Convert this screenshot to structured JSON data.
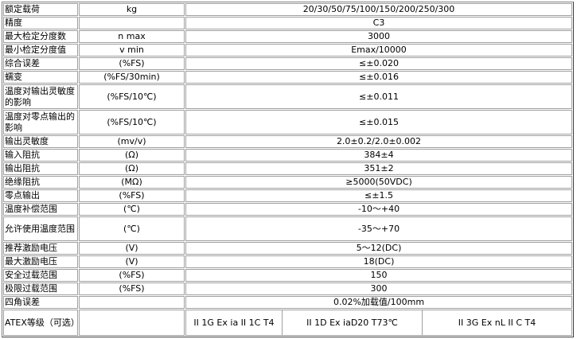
{
  "rows": [
    {
      "name": "额定载荷",
      "unit": "kg",
      "value": "20/30/50/75/100/150/200/250/300"
    },
    {
      "name": "精度",
      "unit": "",
      "value": "C3"
    },
    {
      "name": "最大检定分度数",
      "unit": "n max",
      "value": "3000"
    },
    {
      "name": "最小检定分度值",
      "unit": "v min",
      "value": "Emax/10000"
    },
    {
      "name": "综合误差",
      "unit": "(%FS)",
      "value": "≤±0.020"
    },
    {
      "name": "蠕变",
      "unit": "(%FS/30min)",
      "value": "≤±0.016"
    },
    {
      "name": "温度对输出灵敏度的影响",
      "unit": "(%FS/10℃)",
      "value": "≤±0.011"
    },
    {
      "name": "温度对零点输出的影响",
      "unit": "(%FS/10℃)",
      "value": "≤±0.015"
    },
    {
      "name": "输出灵敏度",
      "unit": "(mv/v)",
      "value": "2.0±0.2/2.0±0.002"
    },
    {
      "name": "输入阻抗",
      "unit": "(Ω)",
      "value": "384±4"
    },
    {
      "name": "输出阻抗",
      "unit": "(Ω)",
      "value": "351±2"
    },
    {
      "name": "绝缘阻抗",
      "unit": "(MΩ)",
      "value": "≥5000(50VDC)"
    },
    {
      "name": "零点输出",
      "unit": "(%FS)",
      "value": "≤±1.5"
    },
    {
      "name": "温度补偿范围",
      "unit": "(℃)",
      "value": "-10～+40"
    },
    {
      "name": "允许使用温度范围",
      "unit": "(℃)",
      "value": "-35～+70"
    },
    {
      "name": "推荐激励电压",
      "unit": "(V)",
      "value": "5～12(DC)"
    },
    {
      "name": "最大激励电压",
      "unit": "(V)",
      "value": "18(DC)"
    },
    {
      "name": "安全过载范围",
      "unit": "(%FS)",
      "value": "150"
    },
    {
      "name": "极限过载范围",
      "unit": "(%FS)",
      "value": "300"
    },
    {
      "name": "四角误差",
      "unit": "",
      "value": "0.02%加载值/100mm"
    }
  ],
  "atex": {
    "name": "ATEX等级（可选）",
    "unit": "",
    "options": [
      "II 1G Ex ia II 1C T4",
      "II 1D Ex iaD20 T73℃",
      "II 3G Ex nL II C T4"
    ]
  }
}
